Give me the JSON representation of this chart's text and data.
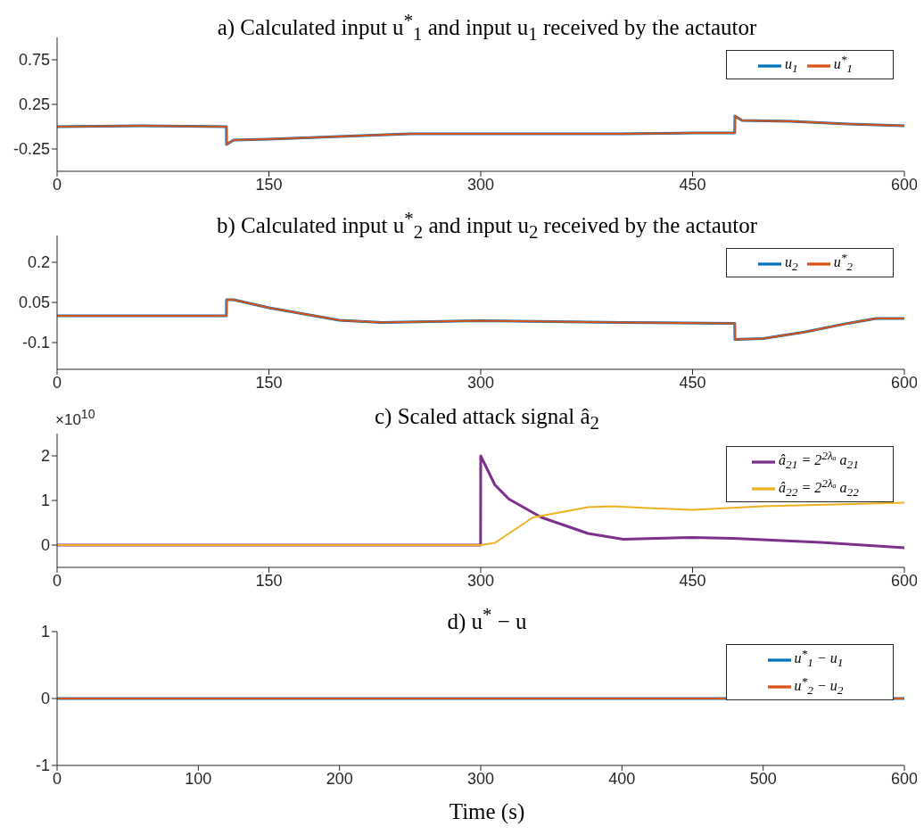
{
  "chart_data": [
    {
      "type": "line",
      "title": "a) Calculated input u$^{*}$$_{1}$ and input u$_{1}$ received by the actautor",
      "xlim": [
        0,
        600
      ],
      "xticks": [
        0,
        150,
        300,
        450,
        600
      ],
      "ylim": [
        -0.5,
        1
      ],
      "yticks": [
        -0.25,
        0.25,
        0.75
      ],
      "legend": "top right",
      "grid": false,
      "series": [
        {
          "name": "u$_{1}$",
          "color": "#0072bd",
          "x": [
            0,
            60,
            119.9,
            120,
            125,
            150,
            200,
            250,
            300,
            350,
            400,
            450,
            479.9,
            480,
            485,
            520,
            560,
            600
          ],
          "values": [
            0.0,
            0.01,
            0.0,
            -0.2,
            -0.15,
            -0.14,
            -0.11,
            -0.08,
            -0.08,
            -0.08,
            -0.08,
            -0.07,
            -0.07,
            0.12,
            0.07,
            0.06,
            0.03,
            0.01
          ]
        },
        {
          "name": "u$^{*}$$_{1}$",
          "color": "#d95319",
          "x": [
            0,
            60,
            119.9,
            120,
            125,
            150,
            200,
            250,
            300,
            350,
            400,
            450,
            479.9,
            480,
            485,
            520,
            560,
            600
          ],
          "values": [
            0.0,
            0.01,
            0.0,
            -0.2,
            -0.15,
            -0.14,
            -0.11,
            -0.08,
            -0.08,
            -0.08,
            -0.08,
            -0.07,
            -0.07,
            0.12,
            0.07,
            0.06,
            0.03,
            0.01
          ]
        }
      ]
    },
    {
      "type": "line",
      "title": "b) Calculated input u$^{*}$$_{2}$ and input u$_{2}$ received by the actautor",
      "xlim": [
        0,
        600
      ],
      "xticks": [
        0,
        150,
        300,
        450,
        600
      ],
      "ylim": [
        -0.2,
        0.3
      ],
      "yticks": [
        -0.1,
        0.05,
        0.2
      ],
      "legend": "top right",
      "grid": false,
      "series": [
        {
          "name": "u$_{2}$",
          "color": "#0072bd",
          "x": [
            0,
            60,
            119.9,
            120,
            125,
            150,
            200,
            230,
            300,
            400,
            479.9,
            480,
            500,
            530,
            560,
            580,
            600
          ],
          "values": [
            0.0,
            0.0,
            0.0,
            0.06,
            0.06,
            0.03,
            -0.017,
            -0.025,
            -0.018,
            -0.025,
            -0.028,
            -0.088,
            -0.085,
            -0.06,
            -0.028,
            -0.01,
            -0.01
          ]
        },
        {
          "name": "u$^{*}$$_{2}$",
          "color": "#d95319",
          "x": [
            0,
            60,
            119.9,
            120,
            125,
            150,
            200,
            230,
            300,
            400,
            479.9,
            480,
            500,
            530,
            560,
            580,
            600
          ],
          "values": [
            0.0,
            0.0,
            0.0,
            0.06,
            0.06,
            0.03,
            -0.017,
            -0.025,
            -0.018,
            -0.025,
            -0.028,
            -0.088,
            -0.085,
            -0.06,
            -0.028,
            -0.01,
            -0.01
          ]
        }
      ]
    },
    {
      "type": "line",
      "title": "c) Scaled attack signal â$_{2}$",
      "annotations": [
        "×10$^{10}$"
      ],
      "xlim": [
        0,
        600
      ],
      "xticks": [
        0,
        150,
        300,
        450,
        600
      ],
      "ylim": [
        -0.5,
        2.5
      ],
      "yticks": [
        0,
        1,
        2
      ],
      "legend": "top right",
      "grid": false,
      "series": [
        {
          "name": "â$_{21}$ = 2$^{2λₐ}$ a$_{21}$",
          "color": "#7e2f8e",
          "x": [
            0,
            299.9,
            300,
            310,
            320,
            343,
            376,
            401,
            450,
            479,
            541,
            600
          ],
          "values": [
            0,
            0,
            2.0,
            1.35,
            1.03,
            0.62,
            0.26,
            0.13,
            0.17,
            0.15,
            0.06,
            -0.06
          ]
        },
        {
          "name": "â$_{22}$ = 2$^{2λₐ}$ a$_{22}$",
          "color": "#edb120",
          "x": [
            0,
            300,
            310,
            337,
            376,
            393,
            418,
            450,
            500,
            600
          ],
          "values": [
            0,
            0,
            0.05,
            0.62,
            0.85,
            0.87,
            0.83,
            0.79,
            0.87,
            0.95
          ]
        }
      ]
    },
    {
      "type": "line",
      "title": "d) u$^{*}$ − u",
      "xlabel": "Time (s)",
      "xlim": [
        0,
        600
      ],
      "xticks": [
        0,
        100,
        200,
        300,
        400,
        500,
        600
      ],
      "ylim": [
        -1,
        1
      ],
      "yticks": [
        -1,
        0,
        1
      ],
      "legend": "top right",
      "grid": false,
      "series": [
        {
          "name": "u$^{*}$$_{1}$ − u$_{1}$",
          "color": "#0072bd",
          "x": [
            0,
            600
          ],
          "values": [
            0,
            0
          ]
        },
        {
          "name": "u$^{*}$$_{2}$ − u$_{2}$",
          "color": "#d95319",
          "x": [
            0,
            600
          ],
          "values": [
            0,
            0
          ]
        }
      ]
    }
  ]
}
